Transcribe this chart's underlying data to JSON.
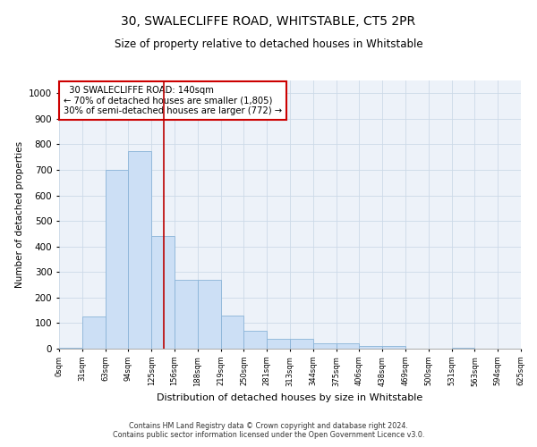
{
  "title": "30, SWALECLIFFE ROAD, WHITSTABLE, CT5 2PR",
  "subtitle": "Size of property relative to detached houses in Whitstable",
  "xlabel": "Distribution of detached houses by size in Whitstable",
  "ylabel": "Number of detached properties",
  "bar_values": [
    5,
    125,
    700,
    775,
    440,
    270,
    270,
    130,
    70,
    40,
    40,
    20,
    20,
    10,
    10,
    0,
    0,
    5,
    0,
    0
  ],
  "bin_labels": [
    "0sqm",
    "31sqm",
    "63sqm",
    "94sqm",
    "125sqm",
    "156sqm",
    "188sqm",
    "219sqm",
    "250sqm",
    "281sqm",
    "313sqm",
    "344sqm",
    "375sqm",
    "406sqm",
    "438sqm",
    "469sqm",
    "500sqm",
    "531sqm",
    "563sqm",
    "594sqm",
    "625sqm"
  ],
  "bar_color": "#ccdff5",
  "bar_edge_color": "#8ab4d8",
  "grid_color": "#ccd9e8",
  "vline_x": 4.52,
  "vline_color": "#bb0000",
  "annotation_text": "  30 SWALECLIFFE ROAD: 140sqm\n← 70% of detached houses are smaller (1,805)\n30% of semi-detached houses are larger (772) →",
  "annotation_box_color": "#cc0000",
  "ylim": [
    0,
    1050
  ],
  "yticks": [
    0,
    100,
    200,
    300,
    400,
    500,
    600,
    700,
    800,
    900,
    1000
  ],
  "footer_line1": "Contains HM Land Registry data © Crown copyright and database right 2024.",
  "footer_line2": "Contains public sector information licensed under the Open Government Licence v3.0.",
  "bg_color": "#edf2f9",
  "title_fontsize": 10,
  "subtitle_fontsize": 8.5
}
